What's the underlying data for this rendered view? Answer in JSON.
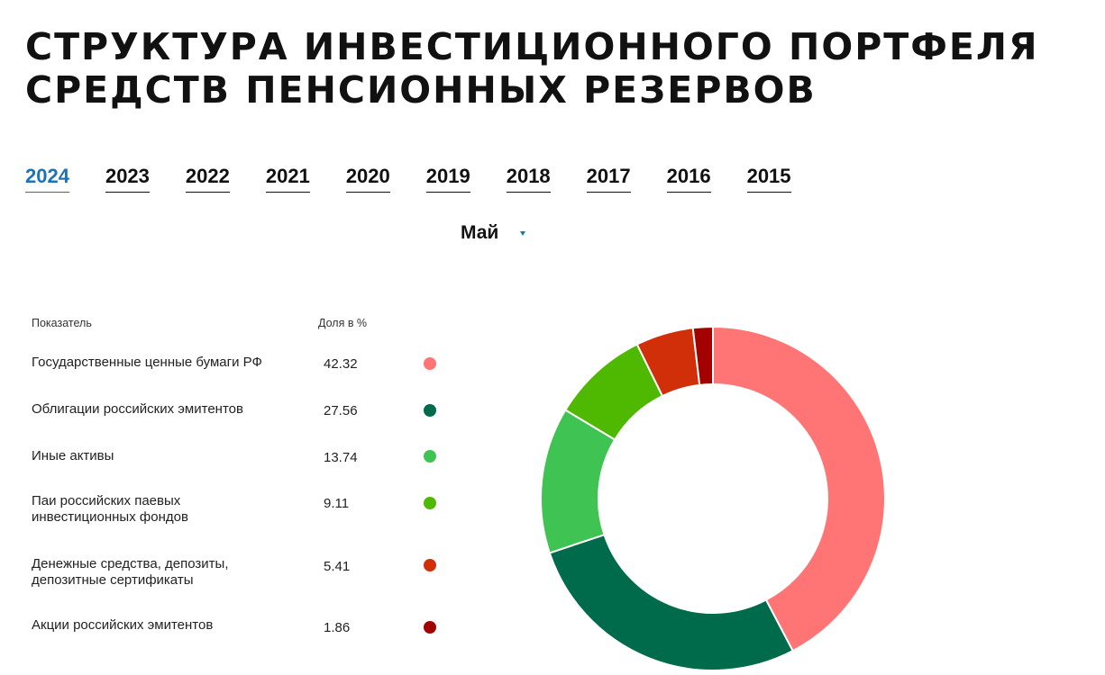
{
  "title": {
    "line1": "Структура инвестиционного портфеля",
    "line2": "средств пенсионных резервов"
  },
  "years": [
    "2024",
    "2023",
    "2022",
    "2021",
    "2020",
    "2019",
    "2018",
    "2017",
    "2016",
    "2015"
  ],
  "active_year": "2024",
  "month": {
    "selected": "Май"
  },
  "table": {
    "header_indicator": "Показатель",
    "header_share": "Доля в %"
  },
  "chart_data": {
    "type": "pie",
    "variant": "donut",
    "title": "",
    "categories": [
      "Государственные ценные бумаги РФ",
      "Облигации российских эмитентов",
      "Иные активы",
      "Паи российских паевых инвестиционных фондов",
      "Денежные средства, депозиты, депозитные сертификаты",
      "Акции российских эмитентов"
    ],
    "values": [
      42.32,
      27.56,
      13.74,
      9.11,
      5.41,
      1.86
    ],
    "value_labels": [
      "42.32",
      "27.56",
      "13.74",
      "9.11",
      "5.41",
      "1.86"
    ],
    "colors": [
      "#ff7474",
      "#006b4b",
      "#3fc453",
      "#4fb800",
      "#d12f0a",
      "#a30000"
    ],
    "legend": "left"
  }
}
